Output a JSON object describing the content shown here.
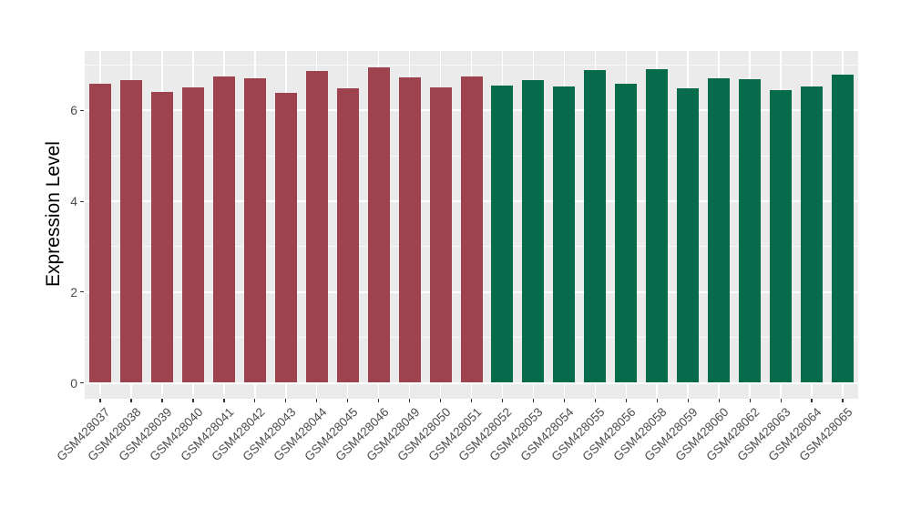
{
  "chart_data": {
    "type": "bar",
    "title": "",
    "xlabel": "",
    "ylabel": "Expression Level",
    "ylim": [
      0,
      7.3
    ],
    "yticks": [
      0,
      2,
      4,
      6
    ],
    "minor_gridlines": [
      1,
      3,
      5,
      7
    ],
    "grid": true,
    "legend": false,
    "panel_background": "#EBEBEB",
    "grid_color": "#ffffff",
    "tick_color": "#333333",
    "tick_label_color": "#4D4D4D",
    "categories": [
      "GSM428037",
      "GSM428038",
      "GSM428039",
      "GSM428040",
      "GSM428041",
      "GSM428042",
      "GSM428043",
      "GSM428044",
      "GSM428045",
      "GSM428046",
      "GSM428049",
      "GSM428050",
      "GSM428051",
      "GSM428052",
      "GSM428053",
      "GSM428054",
      "GSM428055",
      "GSM428056",
      "GSM428058",
      "GSM428059",
      "GSM428060",
      "GSM428062",
      "GSM428063",
      "GSM428064",
      "GSM428065"
    ],
    "values": [
      6.59,
      6.68,
      6.4,
      6.5,
      6.76,
      6.71,
      6.38,
      6.87,
      6.48,
      6.95,
      6.74,
      6.51,
      6.75,
      6.54,
      6.67,
      6.52,
      6.89,
      6.59,
      6.92,
      6.49,
      6.72,
      6.7,
      6.44,
      6.52,
      6.8
    ],
    "groups": [
      "group1",
      "group1",
      "group1",
      "group1",
      "group1",
      "group1",
      "group1",
      "group1",
      "group1",
      "group1",
      "group1",
      "group1",
      "group1",
      "group2",
      "group2",
      "group2",
      "group2",
      "group2",
      "group2",
      "group2",
      "group2",
      "group2",
      "group2",
      "group2",
      "group2"
    ],
    "group_colors": {
      "group1": "#9D4350",
      "group2": "#056B4B"
    }
  }
}
